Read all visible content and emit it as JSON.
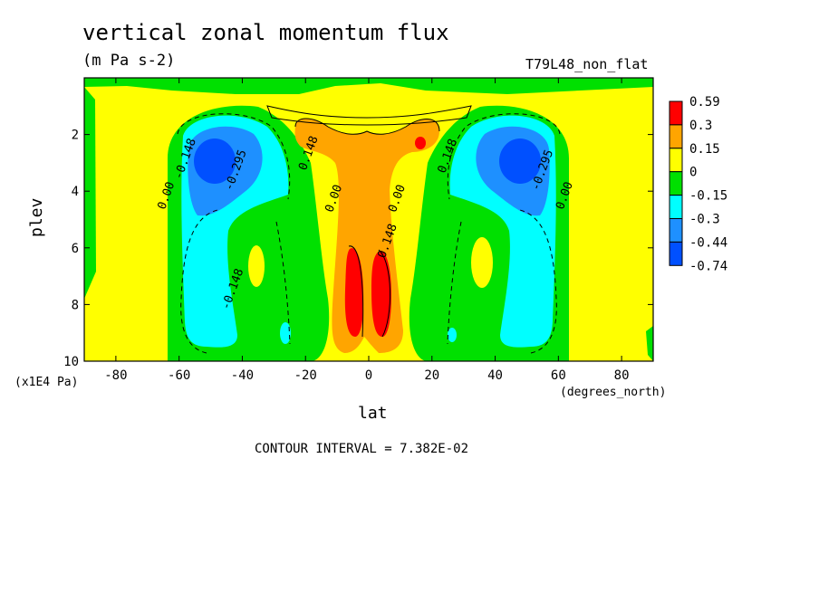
{
  "chart_data": {
    "type": "heatmap",
    "title": "vertical zonal momentum flux",
    "units": "(m Pa s-2)",
    "model_label": "T79L48_non_flat",
    "xlabel": "lat",
    "xunit": "(degrees_north)",
    "ylabel": "plev",
    "yunit": "(x1E4 Pa)",
    "contour_interval": "CONTOUR INTERVAL = 7.382E-02",
    "xlim": [
      -90,
      90
    ],
    "ylim": [
      10,
      0
    ],
    "x_ticks": [
      "-80",
      "-60",
      "-40",
      "-20",
      "0",
      "20",
      "40",
      "60",
      "80"
    ],
    "y_ticks": [
      "2",
      "4",
      "6",
      "8",
      "10"
    ],
    "colorbar": {
      "labels": [
        "0.59",
        "0.3",
        "0.15",
        "0",
        "-0.15",
        "-0.3",
        "-0.44",
        "-0.74"
      ],
      "colors": [
        "#ff0000",
        "#ffa500",
        "#ffff00",
        "#00e000",
        "#00ffff",
        "#1e90ff",
        "#0050ff"
      ]
    },
    "contour_labels": [
      {
        "text": "-0.148",
        "lat": -57,
        "lev": 2.9
      },
      {
        "text": "-0.295",
        "lat": -41,
        "lev": 3.3
      },
      {
        "text": "0.00",
        "lat": -63,
        "lev": 4.2
      },
      {
        "text": "-0.148",
        "lat": -42,
        "lev": 7.5
      },
      {
        "text": "0.148",
        "lat": -18,
        "lev": 2.7
      },
      {
        "text": "0.00",
        "lat": -10,
        "lev": 4.3
      },
      {
        "text": "0.00",
        "lat": 10,
        "lev": 4.3
      },
      {
        "text": "0.148",
        "lat": 7,
        "lev": 5.8
      },
      {
        "text": "0.148",
        "lat": 26,
        "lev": 2.8
      },
      {
        "text": "-0.295",
        "lat": 56,
        "lev": 3.3
      },
      {
        "text": "0.00",
        "lat": 63,
        "lev": 4.2
      }
    ],
    "regions": [
      {
        "name": "south-negative-core",
        "lat": -50,
        "lev": 3.0,
        "value": -0.6
      },
      {
        "name": "north-negative-core",
        "lat": 48,
        "lev": 3.0,
        "value": -0.6
      },
      {
        "name": "equatorial-positive-core",
        "lat": 0,
        "lev": 8.0,
        "value": 0.5
      },
      {
        "name": "south-positive-pocket",
        "lat": -36,
        "lev": 6.7,
        "value": 0.05
      },
      {
        "name": "north-positive-pocket",
        "lat": 36,
        "lev": 6.7,
        "value": 0.05
      }
    ]
  }
}
